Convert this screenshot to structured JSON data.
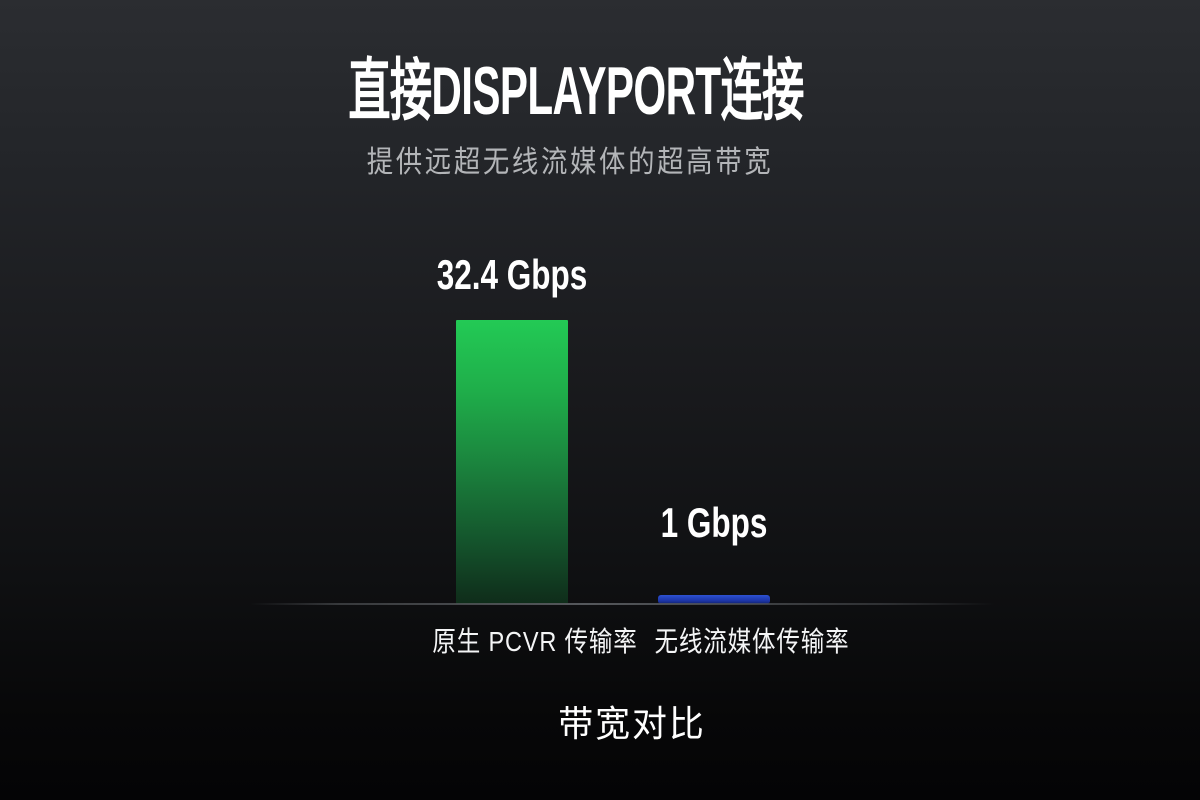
{
  "header": {
    "title": "直接DISPLAYPORT连接",
    "subtitle": "提供远超无线流媒体的超高带宽"
  },
  "chart_data": {
    "type": "bar",
    "title": "带宽对比",
    "unit": "Gbps",
    "categories": [
      "原生 PCVR 传输率",
      "无线流媒体传输率"
    ],
    "values": [
      32.4,
      1
    ],
    "value_labels": [
      "32.4 Gbps",
      "1 Gbps"
    ],
    "bar_colors": [
      "#23ca55",
      "#2443bd"
    ],
    "ylim": [
      0,
      32.4
    ],
    "grid": false,
    "legend": "none",
    "background_top": "#2b2d31",
    "background_bottom": "#040405",
    "text_color": "#ffffff",
    "subtitle_color": "#b3b5b8",
    "axis_line_color": "#55585c"
  }
}
